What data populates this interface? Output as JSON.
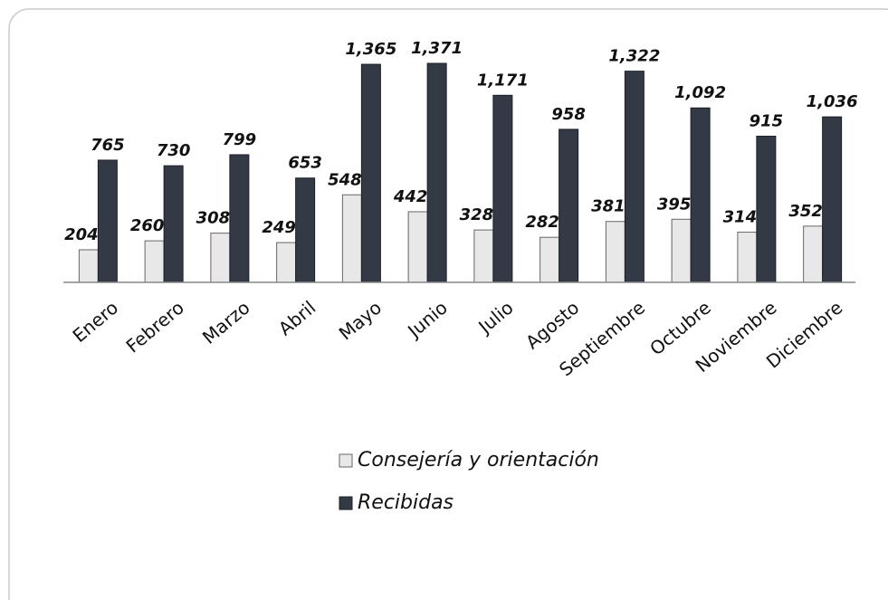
{
  "chart_data": {
    "type": "bar",
    "categories": [
      "Enero",
      "Febrero",
      "Marzo",
      "Abril",
      "Mayo",
      "Junio",
      "Julio",
      "Agosto",
      "Septiembre",
      "Octubre",
      "Noviembre",
      "Diciembre"
    ],
    "series": [
      {
        "name": "Consejería y orientación",
        "color": "#e8e8e8",
        "values": [
          204,
          260,
          308,
          249,
          548,
          442,
          328,
          282,
          381,
          395,
          314,
          352
        ]
      },
      {
        "name": "Recibidas",
        "color": "#333a45",
        "values": [
          765,
          730,
          799,
          653,
          1365,
          1371,
          1171,
          958,
          1322,
          1092,
          915,
          1036
        ],
        "value_labels": [
          "765",
          "730",
          "799",
          "653",
          "1,365",
          "1,371",
          "1,171",
          "958",
          "1,322",
          "1,092",
          "915",
          "1,036"
        ]
      }
    ]
  }
}
